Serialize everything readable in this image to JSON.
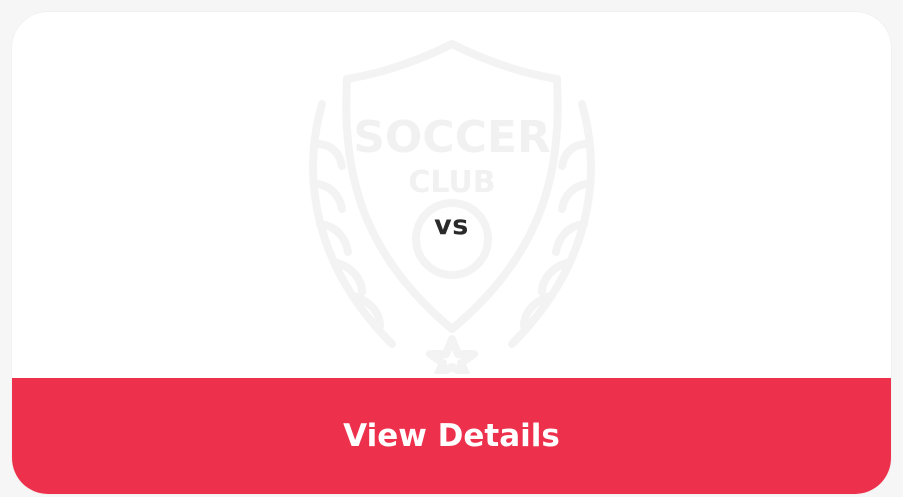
{
  "match_card": {
    "watermark_logo_text": [
      "SOCCER",
      "CLUB"
    ],
    "vs_label": "vs",
    "view_details_label": "View Details"
  },
  "colors": {
    "accent": "#ed314c",
    "card_background": "#ffffff",
    "page_background": "#f6f6f6",
    "vs_text": "#2a2a2a",
    "watermark": "#f3f3f3"
  },
  "icons": {
    "watermark": "soccer-club-crest-icon"
  }
}
